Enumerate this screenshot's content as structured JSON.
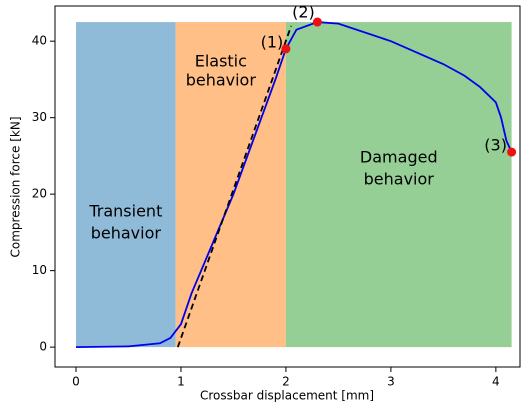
{
  "chart_data": {
    "type": "line",
    "xlabel": "Crossbar displacement [mm]",
    "ylabel": "Compression force [kN]",
    "xlim": [
      -0.2,
      4.23
    ],
    "ylim": [
      -2.6,
      44.6
    ],
    "xticks": [
      0,
      1,
      2,
      3,
      4
    ],
    "yticks": [
      0,
      10,
      20,
      30,
      40
    ],
    "regions": [
      {
        "label": [
          "Transient",
          "behavior"
        ],
        "x": [
          0,
          0.95
        ],
        "y": [
          0,
          42.5
        ],
        "color": "#8fbbd9"
      },
      {
        "label": [
          "Elastic",
          "behavior"
        ],
        "x": [
          0.95,
          2.0
        ],
        "y": [
          0,
          42.5
        ],
        "color": "#ffbf86"
      },
      {
        "label": [
          "Damaged",
          "behavior"
        ],
        "x": [
          2.0,
          4.15
        ],
        "y": [
          0,
          42.5
        ],
        "color": "#95cf95"
      }
    ],
    "series": [
      {
        "color": "#0000ee",
        "dashed": false,
        "x": [
          0,
          0.5,
          0.8,
          0.9,
          1.0,
          1.1,
          1.5,
          1.9,
          2.0,
          2.1,
          2.3,
          2.5,
          3.0,
          3.5,
          3.7,
          3.85,
          4.0,
          4.05,
          4.1,
          4.15
        ],
        "values": [
          0,
          0.1,
          0.5,
          1.2,
          3,
          7,
          20,
          35,
          39,
          41.5,
          42.5,
          42.3,
          40,
          37,
          35.5,
          34,
          32,
          30,
          27,
          25.5
        ]
      },
      {
        "color": "#000000",
        "dashed": true,
        "x": [
          0.97,
          2.05
        ],
        "values": [
          0,
          42
        ]
      }
    ],
    "points": {
      "x": [
        2.0,
        2.3,
        4.15
      ],
      "values": [
        39,
        42.5,
        25.5
      ],
      "labels": [
        "(1)",
        "(2)",
        "(3)"
      ],
      "color": "#ee1111"
    }
  }
}
